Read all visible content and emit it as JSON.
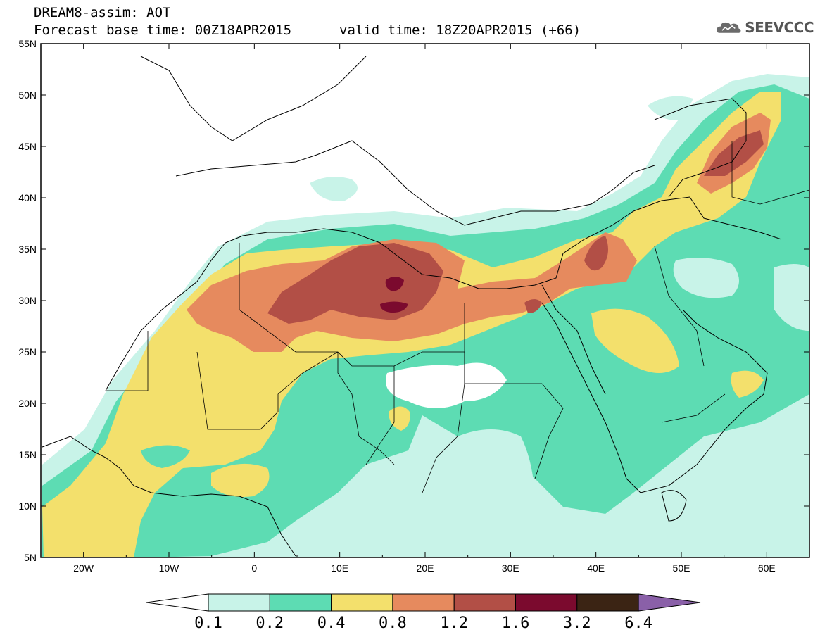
{
  "title": {
    "line1": "DREAM8-assim: AOT",
    "base_time": "Forecast base time: 00Z18APR2015",
    "valid_time": "valid time: 18Z20APR2015 (+66)"
  },
  "logo": {
    "text": "SEEVCCC",
    "icon": "cloud-icon"
  },
  "map": {
    "projection": "cylindrical",
    "lon_range": [
      -25,
      65
    ],
    "lat_range": [
      5,
      55
    ],
    "lat_ticks": [
      "5N",
      "10N",
      "15N",
      "20N",
      "25N",
      "30N",
      "35N",
      "40N",
      "45N",
      "50N",
      "55N"
    ],
    "lon_ticks": [
      "20W",
      "10W",
      "0",
      "10E",
      "20E",
      "30E",
      "40E",
      "50E",
      "60E"
    ]
  },
  "colorbar": {
    "labels": [
      "0.1",
      "0.2",
      "0.4",
      "0.8",
      "1.2",
      "1.6",
      "3.2",
      "6.4"
    ],
    "colors": [
      "#c8f3e8",
      "#5ddcb3",
      "#f3e06c",
      "#e68a5e",
      "#b24f46",
      "#7b0a2e",
      "#3b2414",
      "#8a60a8"
    ]
  }
}
